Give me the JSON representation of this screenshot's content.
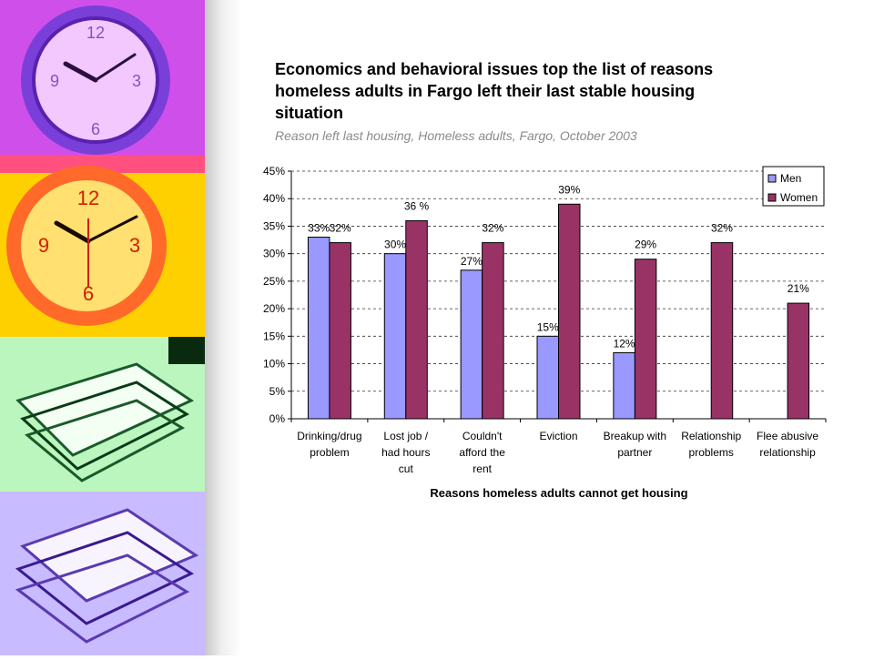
{
  "slide": {
    "title_lines": [
      "Economics and behavioral issues top the list of reasons",
      "homeless adults in Fargo left their last stable housing",
      "situation"
    ],
    "subtitle": "Reason left last housing, Homeless adults, Fargo, October 2003",
    "sidebar_images": [
      "purple-clock",
      "orange-clock",
      "green-papers",
      "purple-papers"
    ]
  },
  "chart_data": {
    "type": "bar",
    "categories": [
      [
        "Drinking/drug",
        "problem"
      ],
      [
        "Lost job /",
        "had hours",
        "cut"
      ],
      [
        "Couldn't",
        "afford the",
        "rent"
      ],
      [
        "Eviction"
      ],
      [
        "Breakup with",
        "partner"
      ],
      [
        "Relationship",
        "problems"
      ],
      [
        "Flee abusive",
        "relationship"
      ]
    ],
    "series": [
      {
        "name": "Men",
        "color": "#9999ff",
        "values": [
          33,
          30,
          27,
          15,
          12,
          null,
          null
        ],
        "labels": [
          "33%",
          "30%",
          "27%",
          "15%",
          "12%",
          "",
          ""
        ]
      },
      {
        "name": "Women",
        "color": "#993366",
        "values": [
          32,
          36,
          32,
          39,
          29,
          32,
          21
        ],
        "labels": [
          "32%",
          "36 %",
          "32%",
          "39%",
          "29%",
          "32%",
          "21%"
        ]
      }
    ],
    "xlabel": "Reasons homeless adults cannot get housing",
    "ylabel": "",
    "ylim": [
      0,
      45
    ],
    "yticks": [
      "0%",
      "5%",
      "10%",
      "15%",
      "20%",
      "25%",
      "30%",
      "35%",
      "40%",
      "45%"
    ],
    "grid": true,
    "legend": "top-right"
  }
}
